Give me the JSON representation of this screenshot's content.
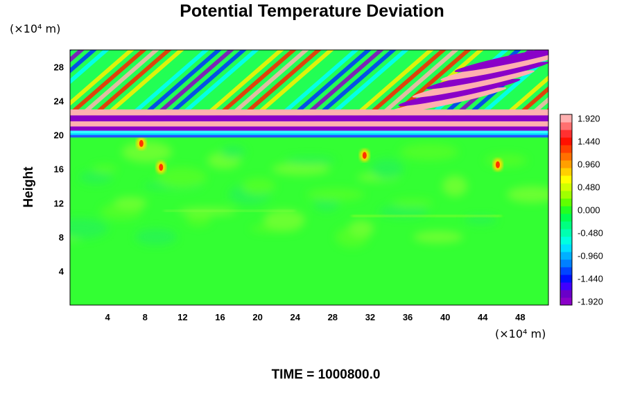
{
  "chart_data": {
    "type": "heatmap",
    "title": "Potential Temperature Deviation",
    "ylabel": "Height",
    "xlabel": "",
    "x_unit": "(×10⁴ m)",
    "y_unit": "(×10⁴ m)",
    "xlim": [
      0,
      51
    ],
    "ylim": [
      0,
      30
    ],
    "xticks": [
      4,
      8,
      12,
      16,
      20,
      24,
      28,
      32,
      36,
      40,
      44,
      48
    ],
    "yticks": [
      4,
      8,
      12,
      16,
      20,
      24,
      28
    ],
    "colorbar": {
      "min": -2.0,
      "max": 2.0,
      "ticks": [
        "1.920",
        "1.440",
        "0.960",
        "0.480",
        "0.000",
        "-0.480",
        "-0.960",
        "-1.440",
        "-1.920"
      ]
    },
    "footer": "TIME = 1000800.0",
    "colors": {
      "background_field": "#33ff33",
      "positive_extreme": "#ffb0b0",
      "negative_extreme": "#8a00c8"
    }
  }
}
